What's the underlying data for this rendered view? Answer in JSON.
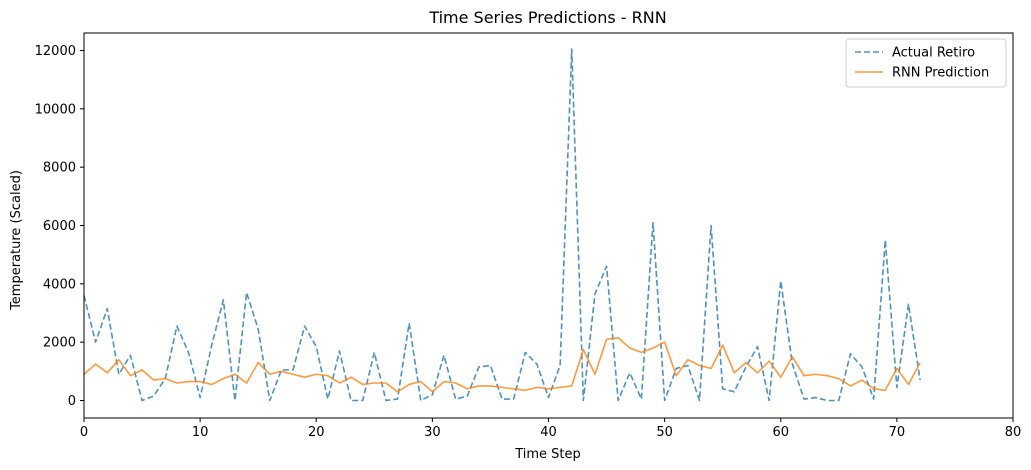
{
  "chart_data": {
    "type": "line",
    "title": "Time Series Predictions - RNN",
    "xlabel": "Time Step",
    "ylabel": "Temperature (Scaled)",
    "xlim": [
      0,
      80
    ],
    "ylim": [
      -600,
      12600
    ],
    "xticks": [
      0,
      10,
      20,
      30,
      40,
      50,
      60,
      70,
      80
    ],
    "yticks": [
      0,
      2000,
      4000,
      6000,
      8000,
      10000,
      12000
    ],
    "grid": false,
    "legend_position": "top-right",
    "series": [
      {
        "name": "Actual Retiro",
        "color": "#1f77b4",
        "style": "dashed",
        "x": [
          0,
          1,
          2,
          3,
          4,
          5,
          6,
          7,
          8,
          9,
          10,
          11,
          12,
          13,
          14,
          15,
          16,
          17,
          18,
          19,
          20,
          21,
          22,
          23,
          24,
          25,
          26,
          27,
          28,
          29,
          30,
          31,
          32,
          33,
          34,
          35,
          36,
          37,
          38,
          39,
          40,
          41,
          42,
          43,
          44,
          45,
          46,
          47,
          48,
          49,
          50,
          51,
          52,
          53,
          54,
          55,
          56,
          57,
          58,
          59,
          60,
          61,
          62,
          63,
          64,
          65,
          66,
          67,
          68,
          69,
          70,
          71,
          72
        ],
        "values": [
          3600,
          2000,
          3150,
          900,
          1550,
          0,
          150,
          750,
          2550,
          1650,
          100,
          1900,
          3450,
          0,
          3700,
          2450,
          0,
          1050,
          1050,
          2550,
          1850,
          50,
          1700,
          0,
          0,
          1650,
          0,
          50,
          2650,
          0,
          200,
          1550,
          50,
          150,
          1150,
          1200,
          50,
          50,
          1650,
          1250,
          100,
          1200,
          12050,
          0,
          3650,
          4600,
          0,
          950,
          50,
          6100,
          0,
          1100,
          1200,
          0,
          6000,
          400,
          300,
          1150,
          1850,
          0,
          4100,
          1250,
          50,
          100,
          0,
          0,
          1600,
          1150,
          50,
          5500,
          450,
          3300,
          700
        ]
      },
      {
        "name": "RNN Prediction",
        "color": "#ff7f0e",
        "style": "solid",
        "x": [
          0,
          1,
          2,
          3,
          4,
          5,
          6,
          7,
          8,
          9,
          10,
          11,
          12,
          13,
          14,
          15,
          16,
          17,
          18,
          19,
          20,
          21,
          22,
          23,
          24,
          25,
          26,
          27,
          28,
          29,
          30,
          31,
          32,
          33,
          34,
          35,
          36,
          37,
          38,
          39,
          40,
          41,
          42,
          43,
          44,
          45,
          46,
          47,
          48,
          49,
          50,
          51,
          52,
          53,
          54,
          55,
          56,
          57,
          58,
          59,
          60,
          61,
          62,
          63,
          64,
          65,
          66,
          67,
          68,
          69,
          70,
          71,
          72
        ],
        "values": [
          900,
          1250,
          950,
          1400,
          850,
          1050,
          700,
          750,
          600,
          650,
          650,
          550,
          750,
          900,
          600,
          1300,
          900,
          1000,
          900,
          800,
          900,
          850,
          600,
          800,
          550,
          600,
          600,
          300,
          550,
          650,
          300,
          650,
          600,
          400,
          500,
          500,
          450,
          400,
          350,
          450,
          400,
          450,
          500,
          1750,
          900,
          2100,
          2150,
          1800,
          1650,
          1800,
          2000,
          850,
          1400,
          1200,
          1100,
          1900,
          950,
          1300,
          950,
          1350,
          800,
          1500,
          850,
          900,
          850,
          750,
          500,
          700,
          400,
          350,
          1100,
          550,
          1300
        ]
      }
    ]
  }
}
